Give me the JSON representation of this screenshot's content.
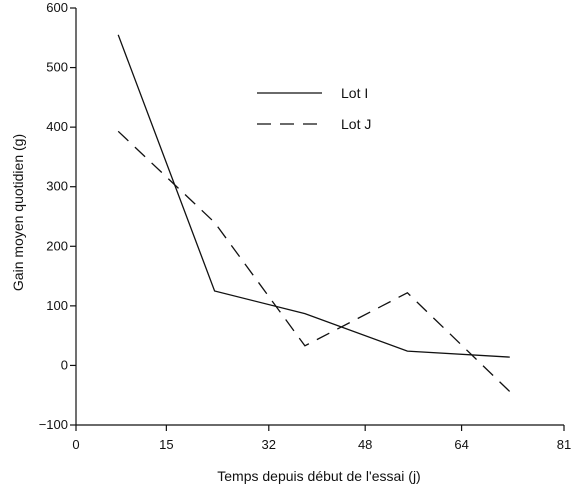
{
  "chart_data": {
    "type": "line",
    "title": "",
    "xlabel": "Temps depuis début de l'essai (j)",
    "ylabel": "Gain moyen quotidien (g)",
    "xlim": [
      0,
      81
    ],
    "ylim": [
      -100,
      600
    ],
    "xticks": [
      0,
      15,
      32,
      48,
      64,
      81
    ],
    "xtick_labels": [
      "0",
      "15",
      "32",
      "48",
      "64",
      "81"
    ],
    "yticks": [
      -100,
      0,
      100,
      200,
      300,
      400,
      500,
      600
    ],
    "ytick_labels": [
      "−100",
      "0",
      "100",
      "200",
      "300",
      "400",
      "500",
      "600"
    ],
    "grid": false,
    "legend_position": "top-center",
    "series": [
      {
        "name": "Lot I",
        "style": "solid",
        "color": "#111111",
        "x": [
          7,
          23,
          38,
          55,
          72
        ],
        "y": [
          555,
          125,
          87,
          24,
          14
        ]
      },
      {
        "name": "Lot J",
        "style": "dashed",
        "color": "#111111",
        "x": [
          7,
          23,
          38,
          55,
          72
        ],
        "y": [
          393,
          240,
          33,
          122,
          -44
        ]
      }
    ]
  }
}
